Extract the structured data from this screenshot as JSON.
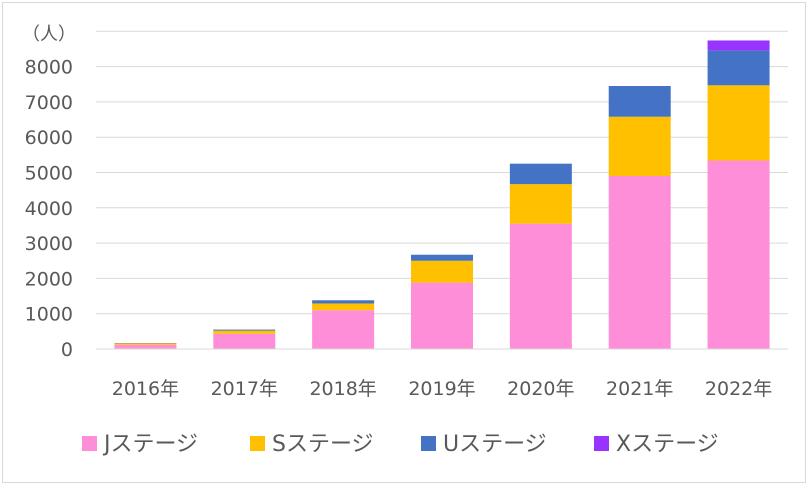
{
  "chart_data": {
    "type": "bar",
    "stacked": true,
    "unit_label": "（人）",
    "categories": [
      "2016年",
      "2017年",
      "2018年",
      "2019年",
      "2020年",
      "2021年",
      "2022年"
    ],
    "series": [
      {
        "name": "Jステージ",
        "color": "#ff8ed9",
        "values": [
          120,
          430,
          1100,
          1880,
          3550,
          4900,
          5340
        ]
      },
      {
        "name": "Sステージ",
        "color": "#ffc000",
        "values": [
          40,
          90,
          190,
          620,
          1120,
          1680,
          2130
        ]
      },
      {
        "name": "Uステージ",
        "color": "#4472c4",
        "values": [
          10,
          30,
          90,
          170,
          580,
          870,
          990
        ]
      },
      {
        "name": "Xステージ",
        "color": "#9933ff",
        "values": [
          0,
          0,
          0,
          0,
          0,
          0,
          280
        ]
      }
    ],
    "ylim": [
      0,
      9000
    ],
    "yticks": [
      0,
      1000,
      2000,
      3000,
      4000,
      5000,
      6000,
      7000,
      8000
    ],
    "grid": true,
    "legend_position": "bottom"
  }
}
